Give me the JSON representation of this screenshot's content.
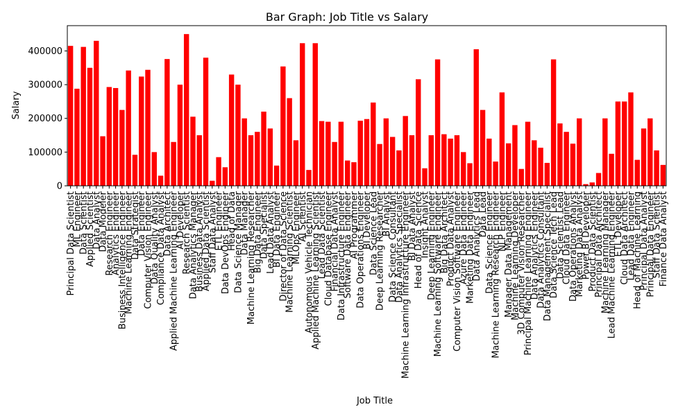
{
  "chart_data": {
    "type": "bar",
    "title": "Bar Graph: Job Title vs Salary",
    "xlabel": "Job Title",
    "ylabel": "Salary",
    "ylim": [
      0,
      475000
    ],
    "yticks": [
      0,
      100000,
      200000,
      300000,
      400000
    ],
    "ytick_labels": [
      "0",
      "100000",
      "200000",
      "300000",
      "400000"
    ],
    "bar_color": "#ff0000",
    "grid": false,
    "categories": [
      "Principal Data Scientist",
      "ML Engineer",
      "Data Scientist",
      "Applied Scientist",
      "Data Analyst",
      "Data Modeler",
      "Research Engineer",
      "Analytics Engineer",
      "Business Intelligence Engineer",
      "Machine Learning Engineer",
      "Data Strategist",
      "Data Engineer",
      "Computer Vision Engineer",
      "Data Quality Analyst",
      "Compliance Data Analyst",
      "Data Architect",
      "Applied Machine Learning Engineer",
      "AI Developer",
      "Research Scientist",
      "Data Analytics Manager",
      "Business Data Analyst",
      "Applied Data Scientist",
      "Staff Data Analyst",
      "ETL Engineer",
      "Data DevOps Engineer",
      "Head of Data",
      "Data Science Manager",
      "Data Manager",
      "Machine Learning Researcher",
      "Big Data Engineer",
      "Data Specialist",
      "Lead Data Analyst",
      "BI Data Engineer",
      "Director of Data Science",
      "Machine Learning Scientist",
      "MLOps Engineer",
      "AI Scientist",
      "Autonomous Vehicle Technician",
      "Applied Machine Learning Scientist",
      "Lead Data Scientist",
      "Cloud Database Engineer",
      "Financial Data Analyst",
      "Data Infrastructure Engineer",
      "Software Data Engineer",
      "AI Programmer",
      "Data Operations Engineer",
      "BI Developer",
      "Data Science Lead",
      "Deep Learning Researcher",
      "BI Analyst",
      "Data Science Consultant",
      "Data Analytics Specialist",
      "Machine Learning Infrastructure Engineer",
      "BI Data Analyst",
      "Head of Data Science",
      "Insight Analyst",
      "Deep Learning Engineer",
      "Machine Learning Software Engineer",
      "Big Data Architect",
      "Product Data Analyst",
      "Computer Vision Software Engineer",
      "Azure Data Engineer",
      "Marketing Data Engineer",
      "Data Analytics Lead",
      "Data Lead",
      "Data Science Engineer",
      "Machine Learning Research Engineer",
      "NLP Engineer",
      "Manager Data Management",
      "Machine Learning Developer",
      "3D Computer Vision Researcher",
      "Principal Machine Learning Engineer",
      "Data Analytics Engineer",
      "Data Analytics Consultant",
      "Data Management Specialist",
      "Data Science Tech Lead",
      "Data Scientist Lead",
      "Cloud Data Engineer",
      "Data Operations Analyst",
      "Marketing Data Analyst",
      "Power BI Developer",
      "Product Data Scientist",
      "Principal Data Architect",
      "Machine Learning Manager",
      "Lead Machine Learning Engineer",
      "ETL Developer",
      "Cloud Data Architect",
      "Lead Data Engineer",
      "Head of Machine Learning",
      "Principal Data Analyst",
      "Principal Data Engineer",
      "Staff Data Scientist",
      "Finance Data Analyst"
    ],
    "values": [
      415000,
      288000,
      412000,
      350000,
      430000,
      147000,
      293000,
      290000,
      225000,
      342000,
      92000,
      324000,
      344000,
      100000,
      30000,
      376000,
      130000,
      300000,
      450000,
      205000,
      150000,
      380000,
      15000,
      85000,
      55000,
      330000,
      300000,
      200000,
      150000,
      160000,
      220000,
      170000,
      60000,
      354000,
      260000,
      135000,
      423000,
      47000,
      423000,
      192000,
      190000,
      130000,
      190000,
      75000,
      70000,
      193000,
      198000,
      247000,
      124000,
      200000,
      145000,
      105000,
      207000,
      150000,
      316000,
      52000,
      150000,
      375000,
      153000,
      140000,
      150000,
      100000,
      67000,
      405000,
      225000,
      140000,
      72000,
      277000,
      126000,
      180000,
      50000,
      190000,
      135000,
      113000,
      68000,
      375000,
      185000,
      160000,
      125000,
      200000,
      5000,
      10000,
      38000,
      200000,
      95000,
      250000,
      250000,
      277000,
      77000,
      170000,
      200000,
      105000,
      62000
    ]
  }
}
